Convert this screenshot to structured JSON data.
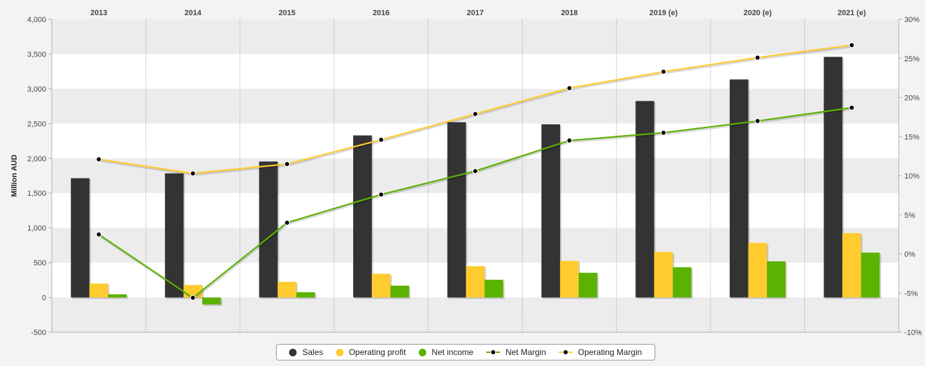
{
  "chart_data": {
    "type": "bar",
    "categories": [
      "2013",
      "2014",
      "2015",
      "2016",
      "2017",
      "2018",
      "2019 (e)",
      "2020 (e)",
      "2021 (e)"
    ],
    "series": [
      {
        "name": "Sales",
        "type": "bar",
        "axis": "left",
        "color": "#333333",
        "values": [
          1715,
          1785,
          1955,
          2330,
          2520,
          2490,
          2825,
          3135,
          3460
        ]
      },
      {
        "name": "Operating profit",
        "type": "bar",
        "axis": "left",
        "color": "#ffcb2f",
        "values": [
          200,
          180,
          225,
          340,
          450,
          525,
          655,
          785,
          925
        ]
      },
      {
        "name": "Net income",
        "type": "bar",
        "axis": "left",
        "color": "#5cb200",
        "values": [
          45,
          -100,
          75,
          170,
          255,
          355,
          435,
          520,
          645
        ]
      },
      {
        "name": "Net Margin",
        "type": "line",
        "axis": "right",
        "color": "#5cb200",
        "values": [
          2.5,
          -5.6,
          4.0,
          7.6,
          10.6,
          14.5,
          15.5,
          17.0,
          18.7
        ]
      },
      {
        "name": "Operating Margin",
        "type": "line",
        "axis": "right",
        "color": "#ffcb2f",
        "values": [
          12.1,
          10.3,
          11.5,
          14.6,
          17.9,
          21.2,
          23.3,
          25.1,
          26.7
        ]
      }
    ],
    "ylabel": "Million AUD",
    "ylim": [
      -500,
      4000
    ],
    "yticks": [
      "-500",
      "0",
      "500",
      "1,000",
      "1,500",
      "2,000",
      "2,500",
      "3,000",
      "3,500",
      "4,000"
    ],
    "y2lim": [
      -10,
      30
    ],
    "y2ticks": [
      "-10%",
      "-5%",
      "0%",
      "5%",
      "10%",
      "15%",
      "20%",
      "25%",
      "30%"
    ],
    "grid": "horizontal bands",
    "legend_position": "bottom-center"
  },
  "legend": {
    "sales": "Sales",
    "operating_profit": "Operating profit",
    "net_income": "Net income",
    "net_margin": "Net Margin",
    "operating_margin": "Operating Margin"
  }
}
